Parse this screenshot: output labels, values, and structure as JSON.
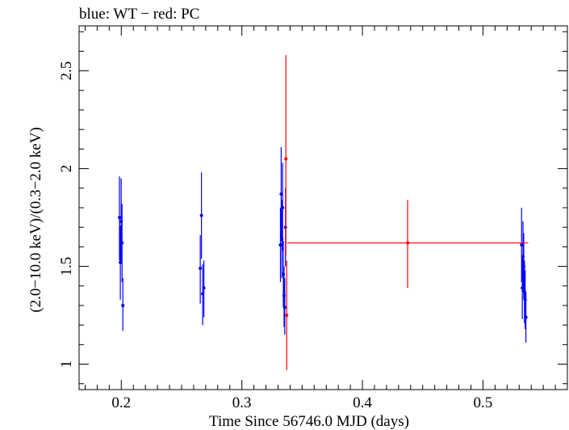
{
  "chart_data": {
    "type": "scatter",
    "title": "blue: WT − red: PC",
    "xlabel": "Time Since 56746.0 MJD (days)",
    "ylabel": "(2.0−10.0 keV)/(0.3−2.0 keV)",
    "xlim": [
      0.165,
      0.57
    ],
    "ylim": [
      0.87,
      2.73
    ],
    "xticks": [
      0.2,
      0.3,
      0.4,
      0.5
    ],
    "xtick_labels": [
      "0.2",
      "0.3",
      "0.4",
      "0.5"
    ],
    "yticks": [
      1,
      1.5,
      2,
      2.5
    ],
    "ytick_labels": [
      "1",
      "1.5",
      "2",
      "2.5"
    ],
    "grid": false,
    "series": [
      {
        "name": "WT",
        "color": "#0000ff",
        "points": [
          {
            "x": 0.1985,
            "y": 1.75,
            "ylo": 1.53,
            "yhi": 1.96
          },
          {
            "x": 0.1992,
            "y": 1.52,
            "ylo": 1.33,
            "yhi": 1.71
          },
          {
            "x": 0.1999,
            "y": 1.73,
            "ylo": 1.52,
            "yhi": 1.95
          },
          {
            "x": 0.2006,
            "y": 1.62,
            "ylo": 1.42,
            "yhi": 1.82
          },
          {
            "x": 0.2013,
            "y": 1.3,
            "ylo": 1.17,
            "yhi": 1.44
          },
          {
            "x": 0.2655,
            "y": 1.49,
            "ylo": 1.31,
            "yhi": 1.66
          },
          {
            "x": 0.2665,
            "y": 1.76,
            "ylo": 1.54,
            "yhi": 1.98
          },
          {
            "x": 0.2675,
            "y": 1.36,
            "ylo": 1.2,
            "yhi": 1.51
          },
          {
            "x": 0.2685,
            "y": 1.39,
            "ylo": 1.24,
            "yhi": 1.53
          },
          {
            "x": 0.332,
            "y": 1.61,
            "ylo": 1.42,
            "yhi": 1.8
          },
          {
            "x": 0.3326,
            "y": 1.87,
            "ylo": 1.63,
            "yhi": 2.11
          },
          {
            "x": 0.3332,
            "y": 1.64,
            "ylo": 1.44,
            "yhi": 1.84
          },
          {
            "x": 0.3338,
            "y": 1.8,
            "ylo": 1.58,
            "yhi": 2.03
          },
          {
            "x": 0.3344,
            "y": 1.46,
            "ylo": 1.29,
            "yhi": 1.63
          },
          {
            "x": 0.335,
            "y": 1.35,
            "ylo": 1.19,
            "yhi": 1.5
          },
          {
            "x": 0.3356,
            "y": 1.29,
            "ylo": 1.15,
            "yhi": 1.44
          },
          {
            "x": 0.3362,
            "y": 1.7,
            "ylo": 1.5,
            "yhi": 1.9
          },
          {
            "x": 0.532,
            "y": 1.61,
            "ylo": 1.42,
            "yhi": 1.8
          },
          {
            "x": 0.5326,
            "y": 1.39,
            "ylo": 1.23,
            "yhi": 1.55
          },
          {
            "x": 0.5332,
            "y": 1.55,
            "ylo": 1.37,
            "yhi": 1.73
          },
          {
            "x": 0.5338,
            "y": 1.5,
            "ylo": 1.33,
            "yhi": 1.67
          },
          {
            "x": 0.5344,
            "y": 1.37,
            "ylo": 1.21,
            "yhi": 1.53
          },
          {
            "x": 0.535,
            "y": 1.33,
            "ylo": 1.18,
            "yhi": 1.48
          },
          {
            "x": 0.5356,
            "y": 1.24,
            "ylo": 1.11,
            "yhi": 1.37
          }
        ]
      },
      {
        "name": "PC",
        "color": "#ff0000",
        "points": [
          {
            "x": 0.3365,
            "y": 2.05,
            "ylo": 1.55,
            "yhi": 2.58
          },
          {
            "x": 0.3372,
            "y": 1.25,
            "ylo": 0.97,
            "yhi": 1.53
          },
          {
            "x": 0.4375,
            "y": 1.62,
            "ylo": 1.39,
            "yhi": 1.84,
            "xlo": 0.3375,
            "xhi": 0.5375
          }
        ]
      }
    ]
  }
}
